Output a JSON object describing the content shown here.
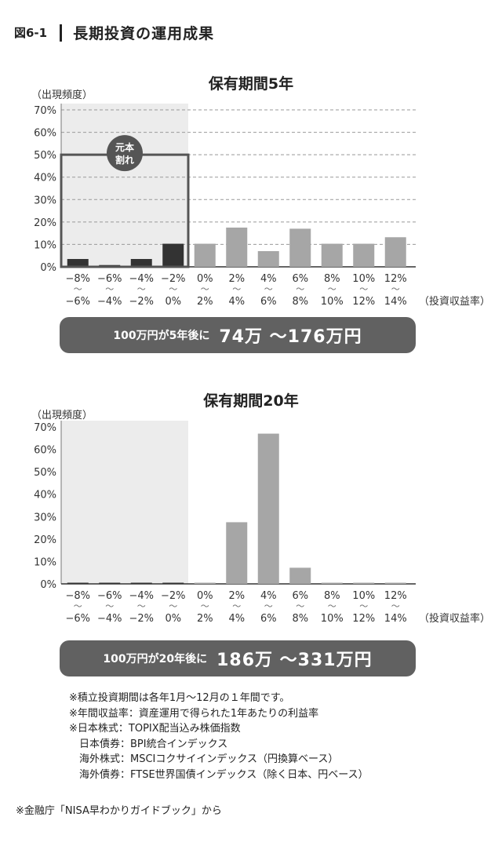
{
  "figure": {
    "number": "図6-1",
    "title": "長期投資の運用成果"
  },
  "chart_data": [
    {
      "type": "bar",
      "title": "保有期間5年",
      "ylabel": "（出現頻度）",
      "xlabel": "（投資収益率）",
      "ylim": [
        0,
        70
      ],
      "yticks": [
        0,
        10,
        20,
        30,
        40,
        50,
        60,
        70
      ],
      "ytick_labels": [
        "0%",
        "10%",
        "20%",
        "30%",
        "40%",
        "50%",
        "60%",
        "70%"
      ],
      "grid": "horizontal-dashed",
      "categories_top": [
        "−8%",
        "−6%",
        "−4%",
        "−2%",
        "0%",
        "2%",
        "4%",
        "6%",
        "8%",
        "10%",
        "12%"
      ],
      "categories_tilde": "〜",
      "categories_bottom": [
        "−6%",
        "−4%",
        "−2%",
        "0%",
        "2%",
        "4%",
        "6%",
        "8%",
        "10%",
        "12%",
        "14%"
      ],
      "values": [
        3.5,
        0.8,
        3.5,
        10.3,
        10.3,
        17.5,
        7,
        17,
        10.3,
        10.3,
        13.2
      ],
      "negative_count": 4,
      "colors": {
        "negative": "#333333",
        "positive": "#a6a6a6",
        "shade": "#ececec"
      },
      "annotation": {
        "line1": "元本",
        "line2": "割れ",
        "box_top": 50
      }
    },
    {
      "type": "bar",
      "title": "保有期間20年",
      "ylabel": "（出現頻度）",
      "xlabel": "（投資収益率）",
      "ylim": [
        0,
        70
      ],
      "yticks": [
        0,
        10,
        20,
        30,
        40,
        50,
        60,
        70
      ],
      "ytick_labels": [
        "0%",
        "10%",
        "20%",
        "30%",
        "40%",
        "50%",
        "60%",
        "70%"
      ],
      "grid": "none",
      "categories_top": [
        "−8%",
        "−6%",
        "−4%",
        "−2%",
        "0%",
        "2%",
        "4%",
        "6%",
        "8%",
        "10%",
        "12%"
      ],
      "categories_tilde": "〜",
      "categories_bottom": [
        "−6%",
        "−4%",
        "−2%",
        "0%",
        "2%",
        "4%",
        "6%",
        "8%",
        "10%",
        "12%",
        "14%"
      ],
      "values": [
        0.4,
        0.4,
        0.4,
        0.4,
        0.3,
        27.5,
        67,
        7.2,
        0.3,
        0.3,
        0.3
      ],
      "negative_count": 4,
      "colors": {
        "negative": "#333333",
        "positive": "#a6a6a6",
        "shade": "#ececec"
      }
    }
  ],
  "summary5": {
    "prefix": "100万円が5年後に",
    "range": "74万 〜176万円"
  },
  "summary20": {
    "prefix": "100万円が20年後に",
    "range": "186万 〜331万円"
  },
  "notes": [
    "※積立投資期間は各年1月〜12月の１年間です。",
    "※年間収益率：資産運用で得られた1年あたりの利益率",
    "※日本株式：TOPIX配当込み株価指数",
    "日本債券：BPI統合インデックス",
    "海外株式：MSCIコクサイインデックス（円換算ベース）",
    "海外債券：FTSE世界国債インデックス（除く日本、円ベース）"
  ],
  "source": "※金融庁「NISA早わかりガイドブック」から"
}
